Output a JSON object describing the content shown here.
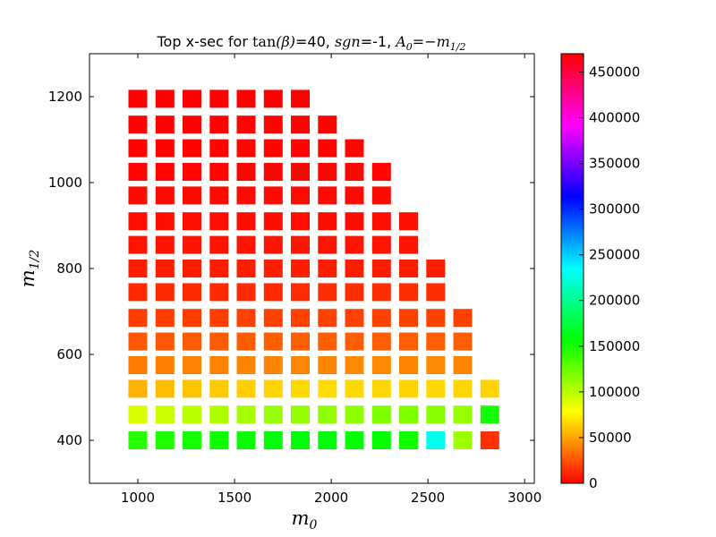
{
  "chart_data": {
    "type": "heatmap",
    "title": {
      "prefix": "Top x-sec for ",
      "tan": "tan",
      "beta": "(β)",
      "tan_value": "=40, ",
      "sgn": "sgn",
      "sgn_value": "=-1, ",
      "a0": "A",
      "a0_sub": "0",
      "eq": "=−m",
      "m_sub": "1/2"
    },
    "xlabel": {
      "base": "m",
      "sub": "0"
    },
    "ylabel": {
      "base": "m",
      "sub": "1/2"
    },
    "xlim": [
      750,
      3050
    ],
    "ylim": [
      300,
      1300
    ],
    "xticks": [
      1000,
      1500,
      2000,
      2500,
      3000
    ],
    "yticks": [
      400,
      600,
      800,
      1000,
      1200
    ],
    "colorbar": {
      "min": 0,
      "max": 470000,
      "ticks": [
        0,
        50000,
        100000,
        150000,
        200000,
        250000,
        300000,
        350000,
        400000,
        450000
      ],
      "colormap": [
        "#ff0000",
        "#ffff00",
        "#00ff00",
        "#00ffff",
        "#0000ff",
        "#ff00ff",
        "#ff0000"
      ]
    },
    "x": [
      1000,
      1140,
      1280,
      1420,
      1560,
      1700,
      1840,
      1980,
      2120,
      2260,
      2400,
      2540,
      2680,
      2820
    ],
    "y": [
      400,
      460,
      520,
      575,
      630,
      685,
      745,
      800,
      855,
      910,
      970,
      1025,
      1080,
      1135,
      1195
    ],
    "column_max_y": [
      1195,
      1195,
      1195,
      1195,
      1195,
      1195,
      1195,
      1135,
      1080,
      1025,
      910,
      800,
      685,
      520
    ],
    "values_by_row": {
      "400": [
        145000,
        148000,
        150000,
        152000,
        154000,
        158000,
        158000,
        158000,
        156000,
        156000,
        152000,
        230000,
        108000,
        15000
      ],
      "460": [
        90000,
        95000,
        100000,
        103000,
        106000,
        110000,
        112000,
        112000,
        113000,
        118000,
        118000,
        115000,
        110000,
        150000
      ],
      "520": [
        55000,
        58000,
        60000,
        62000,
        63000,
        65000,
        67000,
        68000,
        67000,
        66000,
        65000,
        67000,
        66000,
        65000
      ],
      "575": [
        38000,
        39000,
        40000,
        40000,
        41000,
        41000,
        41000,
        41000,
        42000,
        42000,
        41000,
        42000,
        41000,
        null
      ],
      "630": [
        27000,
        27000,
        28000,
        28000,
        28000,
        29000,
        29000,
        29000,
        29000,
        29000,
        29000,
        29000,
        29000,
        null
      ],
      "685": [
        19000,
        19000,
        19000,
        19000,
        20000,
        20000,
        20000,
        20000,
        20000,
        20000,
        20000,
        20000,
        20000,
        null
      ],
      "745": [
        13000,
        13000,
        13000,
        13000,
        13000,
        13000,
        13000,
        14000,
        14000,
        14000,
        14000,
        14000,
        null,
        null
      ],
      "800": [
        9000,
        9000,
        9000,
        9000,
        9000,
        9000,
        9000,
        9000,
        9000,
        9000,
        9000,
        9000,
        null,
        null
      ],
      "855": [
        6000,
        6000,
        6000,
        6000,
        6000,
        6000,
        6000,
        6000,
        6000,
        6000,
        6000,
        null,
        null,
        null
      ],
      "910": [
        4000,
        4000,
        4000,
        4000,
        4000,
        4000,
        4000,
        4000,
        4000,
        4000,
        4000,
        null,
        null,
        null
      ],
      "970": [
        3000,
        3000,
        3000,
        3000,
        3000,
        3000,
        3000,
        3000,
        3000,
        3000,
        null,
        null,
        null,
        null
      ],
      "1025": [
        2000,
        2000,
        2000,
        2000,
        2000,
        2000,
        2000,
        2000,
        2000,
        2000,
        null,
        null,
        null,
        null
      ],
      "1080": [
        1500,
        1500,
        1500,
        1500,
        1500,
        1500,
        1500,
        1500,
        1500,
        null,
        null,
        null,
        null,
        null
      ],
      "1135": [
        1000,
        1000,
        1000,
        1000,
        1000,
        1000,
        1000,
        1000,
        null,
        null,
        null,
        null,
        null,
        null
      ],
      "1195": [
        700,
        700,
        700,
        700,
        700,
        700,
        700,
        null,
        null,
        null,
        null,
        null,
        null,
        null
      ]
    }
  }
}
